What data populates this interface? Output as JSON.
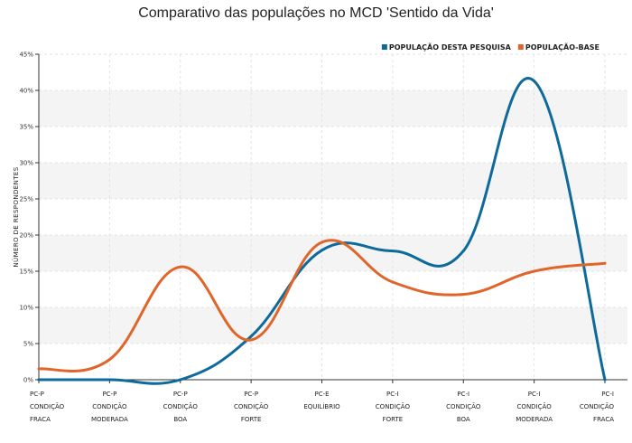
{
  "chart_data": {
    "type": "line",
    "title": "Comparativo das populações no MCD 'Sentido da Vida'",
    "ylabel": "NÚMERO DE RESPONDENTES",
    "xlabel": "",
    "ylim": [
      0,
      45
    ],
    "y_ticks": [
      0,
      5,
      10,
      15,
      20,
      25,
      30,
      35,
      40,
      45
    ],
    "y_tick_labels": [
      "0%",
      "5%",
      "10%",
      "15%",
      "20%",
      "25%",
      "30%",
      "35%",
      "40%",
      "45%"
    ],
    "grid": true,
    "legend_position": "top-right",
    "categories": [
      [
        "PC-P",
        "CONDIÇÃO",
        "FRACA"
      ],
      [
        "PC-P",
        "CONDIÇÃO",
        "MODERADA"
      ],
      [
        "PC-P",
        "CONDIÇÃO",
        "BOA"
      ],
      [
        "PC-P",
        "CONDIÇÃO",
        "FORTE"
      ],
      [
        "PC-E",
        "EQUILÍBRIO",
        ""
      ],
      [
        "PC-I",
        "CONDIÇÃO",
        "FORTE"
      ],
      [
        "PC-I",
        "CONDIÇÃO",
        "BOA"
      ],
      [
        "PC-I",
        "CONDIÇÃO",
        "MODERADA"
      ],
      [
        "PC-I",
        "CONDIÇÃO",
        "FRACA"
      ]
    ],
    "series": [
      {
        "name": "POPULAÇÃO DESTA PESQUISA",
        "color": "#0d6a9b",
        "values": [
          0.0,
          0.0,
          0.0,
          6.0,
          17.9,
          17.8,
          17.8,
          41.3,
          0.0
        ]
      },
      {
        "name": "POPULAÇÃO-BASE",
        "color": "#e0652a",
        "values": [
          1.5,
          2.8,
          15.6,
          5.5,
          19.0,
          13.5,
          11.8,
          15.0,
          16.1
        ]
      }
    ]
  }
}
